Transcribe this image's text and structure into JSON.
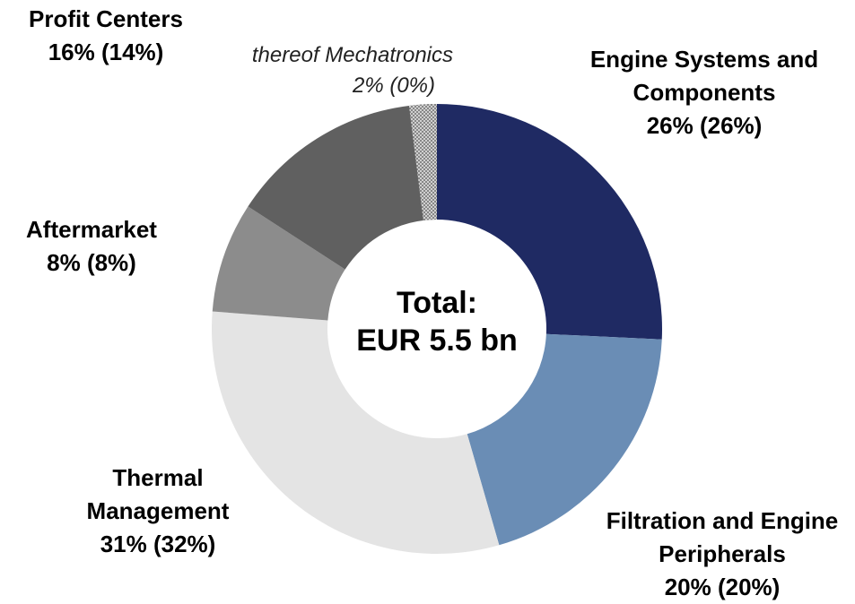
{
  "chart_data": {
    "type": "donut",
    "categories": [
      "Engine Systems and Components",
      "Filtration and Engine Peripherals",
      "Thermal Management",
      "Aftermarket",
      "Profit Centers"
    ],
    "values": [
      26,
      20,
      31,
      8,
      16
    ],
    "value_labels": [
      "26% (26%)",
      "20% (20%)",
      "31% (32%)",
      "8% (8%)",
      "16% (14%)"
    ],
    "colors": [
      "#1f2a63",
      "#6a8db5",
      "#e4e4e4",
      "#8c8c8c",
      "#606060"
    ],
    "sub_segment": {
      "name": "thereof Mechatronics",
      "value": 2,
      "value_label": "2% (0%)",
      "color": "#9a9a9a"
    },
    "center_label": [
      "Total:",
      "EUR 5.5 bn"
    ]
  }
}
